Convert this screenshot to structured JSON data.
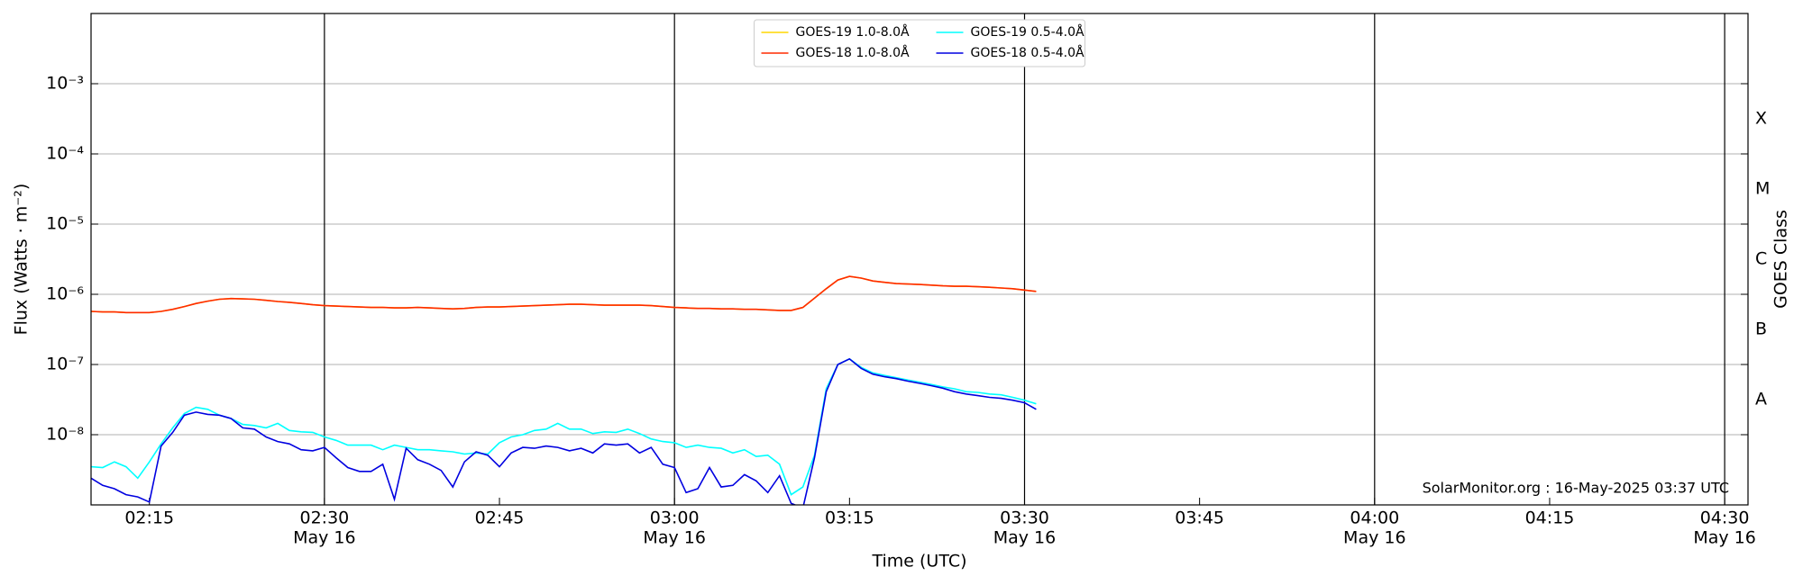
{
  "chart_data": {
    "type": "line",
    "x_label": "Time (UTC)",
    "y_label": "Flux (Watts · m⁻²)",
    "y2_label": "GOES Class",
    "annotation": "SolarMonitor.org : 16-May-2025 03:37 UTC",
    "log_y": true,
    "grid": true,
    "legend": "upper center",
    "xlim": [
      "02:10",
      "04:32"
    ],
    "ylim": [
      1e-09,
      0.01
    ],
    "xticks": [
      "02:15",
      {
        "value": "02:30",
        "label": "02:30",
        "date": "May 16"
      },
      "02:45",
      {
        "value": "03:00",
        "label": "03:00",
        "date": "May 16"
      },
      "03:15",
      {
        "value": "03:30",
        "label": "03:30",
        "date": "May 16"
      },
      "03:45",
      {
        "value": "04:00",
        "label": "04:00",
        "date": "May 16"
      },
      "04:15",
      {
        "value": "04:30",
        "label": "04:30",
        "date": "May 16"
      }
    ],
    "yticks": [
      {
        "value": 1e-08,
        "label": "10⁻⁸"
      },
      {
        "value": 1e-07,
        "label": "10⁻⁷"
      },
      {
        "value": 1e-06,
        "label": "10⁻⁶"
      },
      {
        "value": 1e-05,
        "label": "10⁻⁵"
      },
      {
        "value": 0.0001,
        "label": "10⁻⁴"
      },
      {
        "value": 0.001,
        "label": "10⁻³"
      }
    ],
    "y2ticks": [
      {
        "value": 1e-08,
        "label": "A"
      },
      {
        "value": 1e-07,
        "label": "B"
      },
      {
        "value": 1e-06,
        "label": "C"
      },
      {
        "value": 1e-05,
        "label": "M"
      },
      {
        "value": 0.0001,
        "label": "X"
      }
    ],
    "x": [
      "02:10",
      "02:11",
      "02:12",
      "02:13",
      "02:14",
      "02:15",
      "02:16",
      "02:17",
      "02:18",
      "02:19",
      "02:20",
      "02:21",
      "02:22",
      "02:23",
      "02:24",
      "02:25",
      "02:26",
      "02:27",
      "02:28",
      "02:29",
      "02:30",
      "02:31",
      "02:32",
      "02:33",
      "02:34",
      "02:35",
      "02:36",
      "02:37",
      "02:38",
      "02:39",
      "02:40",
      "02:41",
      "02:42",
      "02:43",
      "02:44",
      "02:45",
      "02:46",
      "02:47",
      "02:48",
      "02:49",
      "02:50",
      "02:51",
      "02:52",
      "02:53",
      "02:54",
      "02:55",
      "02:56",
      "02:57",
      "02:58",
      "02:59",
      "03:00",
      "03:01",
      "03:02",
      "03:03",
      "03:04",
      "03:05",
      "03:06",
      "03:07",
      "03:08",
      "03:09",
      "03:10",
      "03:11",
      "03:12",
      "03:13",
      "03:14",
      "03:15",
      "03:16",
      "03:17",
      "03:18",
      "03:19",
      "03:20",
      "03:21",
      "03:22",
      "03:23",
      "03:24",
      "03:25",
      "03:26",
      "03:27",
      "03:28",
      "03:29",
      "03:30",
      "03:31"
    ],
    "series": [
      {
        "name": "GOES-19 1.0-8.0Å",
        "color": "#ffd700",
        "values": [
          5.7e-07,
          5.6e-07,
          5.6e-07,
          5.5e-07,
          5.5e-07,
          5.5e-07,
          5.7e-07,
          6.1e-07,
          6.7e-07,
          7.4e-07,
          8e-07,
          8.5e-07,
          8.7e-07,
          8.6e-07,
          8.5e-07,
          8.2e-07,
          7.9e-07,
          7.7e-07,
          7.4e-07,
          7.1e-07,
          6.9e-07,
          6.8e-07,
          6.7e-07,
          6.6e-07,
          6.5e-07,
          6.5e-07,
          6.4e-07,
          6.4e-07,
          6.5e-07,
          6.4e-07,
          6.3e-07,
          6.2e-07,
          6.3e-07,
          6.5e-07,
          6.6e-07,
          6.6e-07,
          6.7e-07,
          6.8e-07,
          6.9e-07,
          7e-07,
          7.1e-07,
          7.2e-07,
          7.2e-07,
          7.1e-07,
          7e-07,
          7e-07,
          7e-07,
          7e-07,
          6.9e-07,
          6.7e-07,
          6.5e-07,
          6.4e-07,
          6.3e-07,
          6.3e-07,
          6.2e-07,
          6.2e-07,
          6.1e-07,
          6.1e-07,
          6e-07,
          5.9e-07,
          5.9e-07,
          6.5e-07,
          8.8e-07,
          1.2e-06,
          1.6e-06,
          1.8e-06,
          1.7e-06,
          1.55e-06,
          1.48e-06,
          1.42e-06,
          1.4e-06,
          1.38e-06,
          1.35e-06,
          1.32e-06,
          1.3e-06,
          1.3e-06,
          1.28e-06,
          1.26e-06,
          1.23e-06,
          1.2e-06,
          1.15e-06,
          1.1e-06
        ]
      },
      {
        "name": "GOES-18 1.0-8.0Å",
        "color": "#ff2a00",
        "values": [
          5.7e-07,
          5.6e-07,
          5.6e-07,
          5.5e-07,
          5.5e-07,
          5.5e-07,
          5.7e-07,
          6.1e-07,
          6.7e-07,
          7.4e-07,
          8e-07,
          8.5e-07,
          8.7e-07,
          8.6e-07,
          8.5e-07,
          8.2e-07,
          7.9e-07,
          7.7e-07,
          7.4e-07,
          7.1e-07,
          6.9e-07,
          6.8e-07,
          6.7e-07,
          6.6e-07,
          6.5e-07,
          6.5e-07,
          6.4e-07,
          6.4e-07,
          6.5e-07,
          6.4e-07,
          6.3e-07,
          6.2e-07,
          6.3e-07,
          6.5e-07,
          6.6e-07,
          6.6e-07,
          6.7e-07,
          6.8e-07,
          6.9e-07,
          7e-07,
          7.1e-07,
          7.2e-07,
          7.2e-07,
          7.1e-07,
          7e-07,
          7e-07,
          7e-07,
          7e-07,
          6.9e-07,
          6.7e-07,
          6.5e-07,
          6.4e-07,
          6.3e-07,
          6.3e-07,
          6.2e-07,
          6.2e-07,
          6.1e-07,
          6.1e-07,
          6e-07,
          5.9e-07,
          5.9e-07,
          6.5e-07,
          8.8e-07,
          1.2e-06,
          1.6e-06,
          1.8e-06,
          1.7e-06,
          1.55e-06,
          1.48e-06,
          1.42e-06,
          1.4e-06,
          1.38e-06,
          1.35e-06,
          1.32e-06,
          1.3e-06,
          1.3e-06,
          1.28e-06,
          1.26e-06,
          1.23e-06,
          1.2e-06,
          1.15e-06,
          1.1e-06
        ]
      },
      {
        "name": "GOES-19 0.5-4.0Å",
        "color": "#00ffff",
        "values": [
          3.5e-09,
          3.4e-09,
          4.1e-09,
          3.5e-09,
          2.4e-09,
          4.1e-09,
          7.4e-09,
          1.25e-08,
          2e-08,
          2.45e-08,
          2.3e-08,
          1.9e-08,
          1.7e-08,
          1.4e-08,
          1.35e-08,
          1.25e-08,
          1.45e-08,
          1.15e-08,
          1.1e-08,
          1.08e-08,
          9.3e-09,
          8.3e-09,
          7.1e-09,
          7.1e-09,
          7.1e-09,
          6.1e-09,
          7.1e-09,
          6.6e-09,
          6.1e-09,
          6.1e-09,
          5.9e-09,
          5.7e-09,
          5.3e-09,
          5.5e-09,
          5.3e-09,
          7.7e-09,
          9.3e-09,
          1e-08,
          1.15e-08,
          1.2e-08,
          1.45e-08,
          1.2e-08,
          1.2e-08,
          1.04e-08,
          1.1e-08,
          1.08e-08,
          1.2e-08,
          1.04e-08,
          8.7e-09,
          8e-09,
          7.7e-09,
          6.6e-09,
          7.1e-09,
          6.6e-09,
          6.4e-09,
          5.5e-09,
          6.1e-09,
          4.9e-09,
          5.1e-09,
          3.8e-09,
          1.4e-09,
          1.8e-09,
          5.1e-09,
          4.5e-08,
          1e-07,
          1.2e-07,
          9.1e-08,
          7.6e-08,
          7e-08,
          6.5e-08,
          6e-08,
          5.6e-08,
          5.2e-08,
          4.8e-08,
          4.5e-08,
          4.1e-08,
          4e-08,
          3.8e-08,
          3.7e-08,
          3.4e-08,
          3.1e-08,
          2.75e-08
        ]
      },
      {
        "name": "GOES-18 0.5-4.0Å",
        "color": "#0000e0",
        "values": [
          2.4e-09,
          1.9e-09,
          1.7e-09,
          1.4e-09,
          1.3e-09,
          1.1e-09,
          6.9e-09,
          1.08e-08,
          1.9e-08,
          2.1e-08,
          1.95e-08,
          1.9e-08,
          1.7e-08,
          1.25e-08,
          1.2e-08,
          9.3e-09,
          8e-09,
          7.4e-09,
          6.1e-09,
          5.9e-09,
          6.6e-09,
          4.7e-09,
          3.4e-09,
          3e-09,
          3e-09,
          3.8e-09,
          1.2e-09,
          6.4e-09,
          4.4e-09,
          3.8e-09,
          3.1e-09,
          1.8e-09,
          4.1e-09,
          5.7e-09,
          5.1e-09,
          3.5e-09,
          5.5e-09,
          6.6e-09,
          6.4e-09,
          6.9e-09,
          6.6e-09,
          5.9e-09,
          6.4e-09,
          5.5e-09,
          7.4e-09,
          7.1e-09,
          7.4e-09,
          5.5e-09,
          6.6e-09,
          3.8e-09,
          3.4e-09,
          1.5e-09,
          1.7e-09,
          3.4e-09,
          1.8e-09,
          1.9e-09,
          2.7e-09,
          2.2e-09,
          1.5e-09,
          2.6e-09,
          1.05e-09,
          9e-10,
          4.7e-09,
          4.1e-08,
          1e-07,
          1.2e-07,
          8.8e-08,
          7.3e-08,
          6.7e-08,
          6.3e-08,
          5.8e-08,
          5.4e-08,
          5e-08,
          4.6e-08,
          4.1e-08,
          3.8e-08,
          3.6e-08,
          3.4e-08,
          3.3e-08,
          3.1e-08,
          2.85e-08,
          2.3e-08
        ]
      }
    ]
  }
}
